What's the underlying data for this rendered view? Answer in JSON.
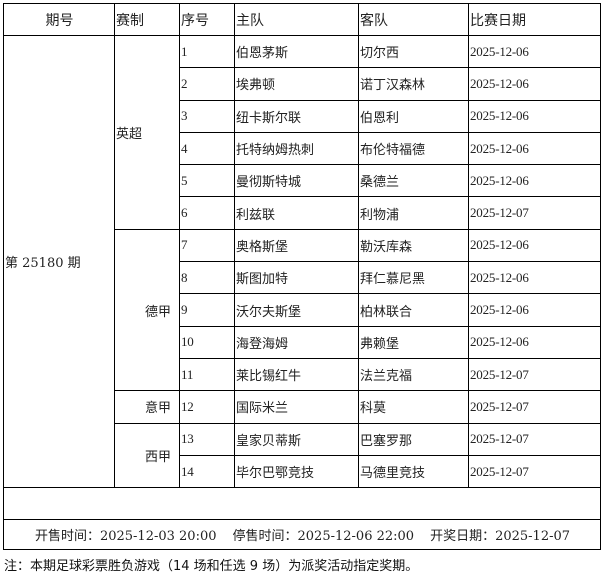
{
  "headers": {
    "period": "期号",
    "league": "赛制",
    "no": "序号",
    "home": "主队",
    "away": "客队",
    "date": "比赛日期"
  },
  "period": "第 25180 期",
  "leagues": [
    {
      "name": "英超",
      "align": "left",
      "matches": [
        {
          "no": "1",
          "home": "伯恩茅斯",
          "away": "切尔西",
          "date": "2025-12-06"
        },
        {
          "no": "2",
          "home": "埃弗顿",
          "away": "诺丁汉森林",
          "date": "2025-12-06"
        },
        {
          "no": "3",
          "home": "纽卡斯尔联",
          "away": "伯恩利",
          "date": "2025-12-06"
        },
        {
          "no": "4",
          "home": "托特纳姆热刺",
          "away": "布伦特福德",
          "date": "2025-12-06"
        },
        {
          "no": "5",
          "home": "曼彻斯特城",
          "away": "桑德兰",
          "date": "2025-12-06"
        },
        {
          "no": "6",
          "home": "利兹联",
          "away": "利物浦",
          "date": "2025-12-07"
        }
      ]
    },
    {
      "name": "德甲",
      "align": "right",
      "matches": [
        {
          "no": "7",
          "home": "奥格斯堡",
          "away": "勒沃库森",
          "date": "2025-12-06"
        },
        {
          "no": "8",
          "home": "斯图加特",
          "away": "拜仁慕尼黑",
          "date": "2025-12-06"
        },
        {
          "no": "9",
          "home": "沃尔夫斯堡",
          "away": "柏林联合",
          "date": "2025-12-06"
        },
        {
          "no": "10",
          "home": "海登海姆",
          "away": "弗赖堡",
          "date": "2025-12-06"
        },
        {
          "no": "11",
          "home": "莱比锡红牛",
          "away": "法兰克福",
          "date": "2025-12-07"
        }
      ]
    },
    {
      "name": "意甲",
      "align": "right",
      "matches": [
        {
          "no": "12",
          "home": "国际米兰",
          "away": "科莫",
          "date": "2025-12-07"
        }
      ]
    },
    {
      "name": "西甲",
      "align": "right",
      "matches": [
        {
          "no": "13",
          "home": "皇家贝蒂斯",
          "away": "巴塞罗那",
          "date": "2025-12-07"
        },
        {
          "no": "14",
          "home": "毕尔巴鄂竞技",
          "away": "马德里竞技",
          "date": "2025-12-07"
        }
      ]
    }
  ],
  "footer": {
    "sale_start": "开售时间：2025-12-03 20:00",
    "sale_stop": "停售时间：2025-12-06 22:00",
    "draw_date": "开奖日期：2025-12-07"
  },
  "note": "注：本期足球彩票胜负游戏（14 场和任选 9 场）为派奖活动指定奖期。"
}
